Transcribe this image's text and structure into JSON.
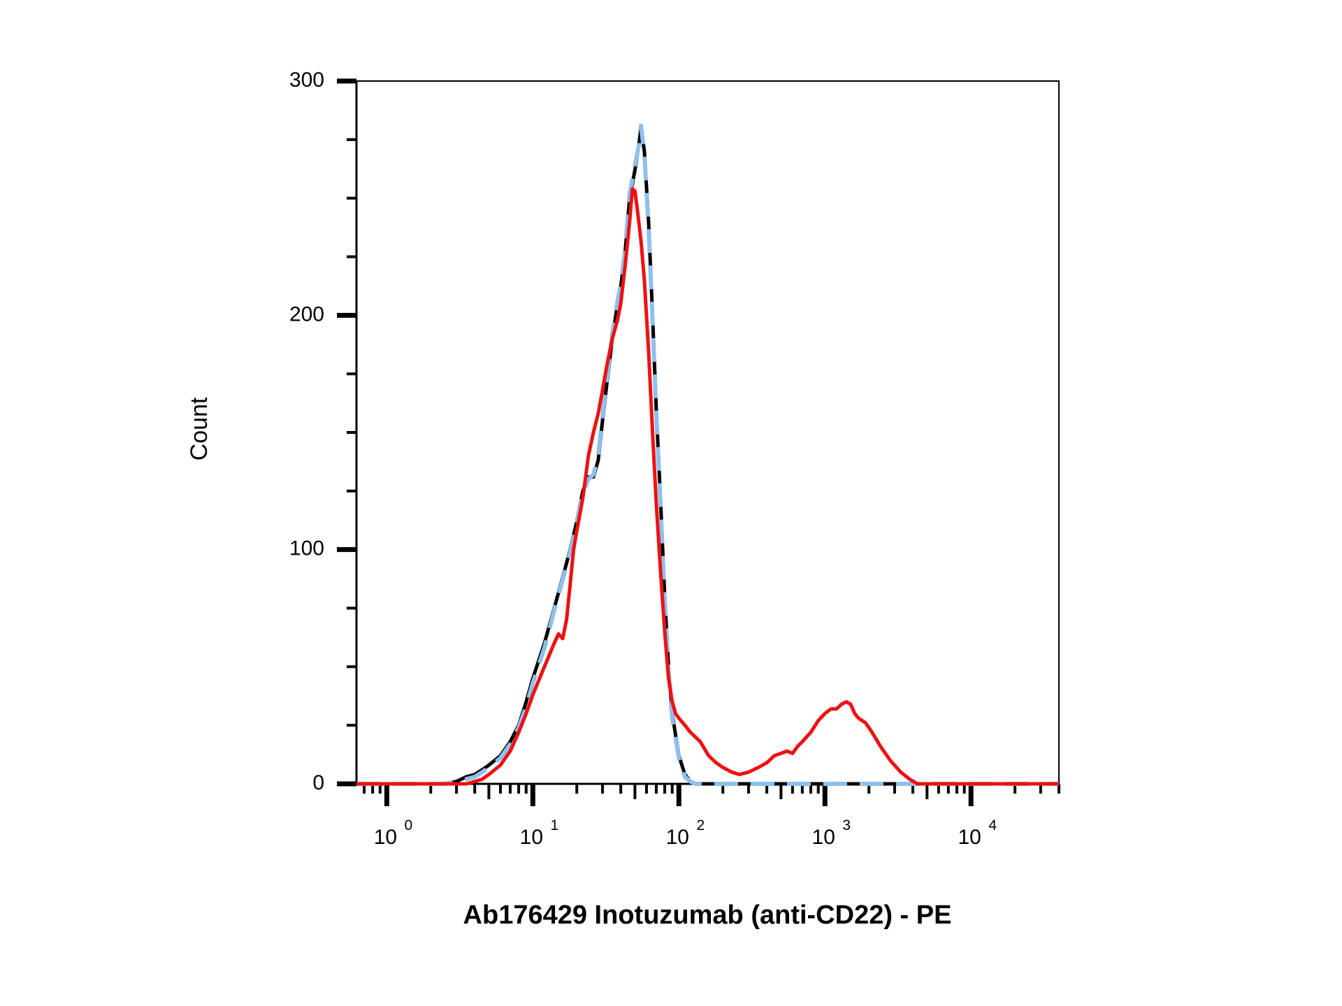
{
  "chart_data": {
    "type": "line",
    "title": "",
    "xlabel": "Ab176429 Inotuzumab (anti-CD22) - PE",
    "ylabel": "Count",
    "x_scale": "log",
    "xlim": [
      0.62,
      40000
    ],
    "ylim": [
      0,
      300
    ],
    "grid": false,
    "legend": "none",
    "y_ticks": [
      {
        "value": 0,
        "label": "0"
      },
      {
        "value": 100,
        "label": "100"
      },
      {
        "value": 200,
        "label": "200"
      },
      {
        "value": 300,
        "label": "300"
      }
    ],
    "x_ticks": [
      {
        "value": 1,
        "base": "10",
        "exp": "0"
      },
      {
        "value": 10,
        "base": "10",
        "exp": "1"
      },
      {
        "value": 100,
        "base": "10",
        "exp": "2"
      },
      {
        "value": 1000,
        "base": "10",
        "exp": "3"
      },
      {
        "value": 10000,
        "base": "10",
        "exp": "4"
      }
    ],
    "series": [
      {
        "color": "#000000",
        "style": "solid",
        "points": [
          [
            0.62,
            0
          ],
          [
            2.5,
            0
          ],
          [
            3,
            1
          ],
          [
            3.5,
            3
          ],
          [
            4,
            4
          ],
          [
            4.5,
            6
          ],
          [
            5,
            8
          ],
          [
            6,
            12
          ],
          [
            7,
            18
          ],
          [
            8,
            25
          ],
          [
            9,
            35
          ],
          [
            10,
            45
          ],
          [
            12,
            60
          ],
          [
            14,
            75
          ],
          [
            16,
            88
          ],
          [
            18,
            100
          ],
          [
            20,
            112
          ],
          [
            22,
            125
          ],
          [
            24,
            131
          ],
          [
            26,
            131
          ],
          [
            28,
            138
          ],
          [
            30,
            155
          ],
          [
            32,
            170
          ],
          [
            35,
            190
          ],
          [
            38,
            205
          ],
          [
            40,
            212
          ],
          [
            43,
            228
          ],
          [
            46,
            250
          ],
          [
            50,
            262
          ],
          [
            53,
            272
          ],
          [
            55,
            280
          ],
          [
            58,
            270
          ],
          [
            62,
            240
          ],
          [
            66,
            200
          ],
          [
            70,
            160
          ],
          [
            75,
            120
          ],
          [
            80,
            80
          ],
          [
            85,
            50
          ],
          [
            90,
            30
          ],
          [
            100,
            12
          ],
          [
            110,
            4
          ],
          [
            120,
            1
          ],
          [
            130,
            0
          ],
          [
            40000,
            0
          ]
        ]
      },
      {
        "color": "#8EC0EE",
        "style": "dashed",
        "points": [
          [
            0.62,
            0
          ],
          [
            2.5,
            0
          ],
          [
            3,
            1
          ],
          [
            3.5,
            2
          ],
          [
            4,
            3
          ],
          [
            4.5,
            5
          ],
          [
            5,
            7
          ],
          [
            6,
            11
          ],
          [
            7,
            17
          ],
          [
            8,
            24
          ],
          [
            9,
            33
          ],
          [
            10,
            43
          ],
          [
            12,
            58
          ],
          [
            14,
            74
          ],
          [
            16,
            87
          ],
          [
            18,
            99
          ],
          [
            20,
            111
          ],
          [
            22,
            124
          ],
          [
            24,
            130
          ],
          [
            26,
            132
          ],
          [
            28,
            140
          ],
          [
            30,
            157
          ],
          [
            32,
            172
          ],
          [
            35,
            192
          ],
          [
            38,
            206
          ],
          [
            40,
            213
          ],
          [
            43,
            229
          ],
          [
            46,
            252
          ],
          [
            50,
            264
          ],
          [
            53,
            272
          ],
          [
            55,
            281
          ],
          [
            58,
            269
          ],
          [
            62,
            238
          ],
          [
            66,
            198
          ],
          [
            70,
            158
          ],
          [
            75,
            118
          ],
          [
            80,
            78
          ],
          [
            85,
            48
          ],
          [
            90,
            28
          ],
          [
            100,
            11
          ],
          [
            110,
            3
          ],
          [
            120,
            1
          ],
          [
            130,
            0
          ],
          [
            40000,
            0
          ]
        ]
      },
      {
        "color": "#EE1111",
        "style": "solid",
        "points": [
          [
            0.62,
            0
          ],
          [
            3.5,
            0
          ],
          [
            4,
            1
          ],
          [
            4.5,
            2
          ],
          [
            5,
            4
          ],
          [
            6,
            8
          ],
          [
            7,
            14
          ],
          [
            8,
            22
          ],
          [
            9,
            30
          ],
          [
            10,
            38
          ],
          [
            12,
            50
          ],
          [
            14,
            60
          ],
          [
            15,
            64
          ],
          [
            16,
            62
          ],
          [
            17,
            70
          ],
          [
            18,
            85
          ],
          [
            19,
            100
          ],
          [
            20,
            108
          ],
          [
            22,
            122
          ],
          [
            24,
            140
          ],
          [
            26,
            150
          ],
          [
            28,
            158
          ],
          [
            30,
            168
          ],
          [
            32,
            178
          ],
          [
            35,
            190
          ],
          [
            38,
            198
          ],
          [
            40,
            205
          ],
          [
            43,
            222
          ],
          [
            46,
            240
          ],
          [
            48,
            254
          ],
          [
            50,
            253
          ],
          [
            52,
            245
          ],
          [
            55,
            232
          ],
          [
            58,
            215
          ],
          [
            62,
            185
          ],
          [
            66,
            150
          ],
          [
            70,
            120
          ],
          [
            75,
            90
          ],
          [
            80,
            65
          ],
          [
            85,
            45
          ],
          [
            90,
            35
          ],
          [
            95,
            30
          ],
          [
            100,
            28
          ],
          [
            110,
            25
          ],
          [
            120,
            22
          ],
          [
            140,
            18
          ],
          [
            160,
            12
          ],
          [
            180,
            9
          ],
          [
            200,
            7
          ],
          [
            230,
            5
          ],
          [
            260,
            4
          ],
          [
            300,
            5
          ],
          [
            350,
            7
          ],
          [
            400,
            9
          ],
          [
            450,
            12
          ],
          [
            500,
            13
          ],
          [
            550,
            14
          ],
          [
            600,
            13
          ],
          [
            650,
            16
          ],
          [
            700,
            18
          ],
          [
            800,
            22
          ],
          [
            900,
            27
          ],
          [
            1000,
            30
          ],
          [
            1100,
            32
          ],
          [
            1200,
            32
          ],
          [
            1300,
            34
          ],
          [
            1400,
            35
          ],
          [
            1500,
            34
          ],
          [
            1600,
            30
          ],
          [
            1700,
            28
          ],
          [
            1900,
            26
          ],
          [
            2100,
            22
          ],
          [
            2400,
            16
          ],
          [
            2800,
            10
          ],
          [
            3300,
            5
          ],
          [
            3800,
            2
          ],
          [
            4300,
            0
          ],
          [
            40000,
            0
          ]
        ]
      }
    ]
  }
}
